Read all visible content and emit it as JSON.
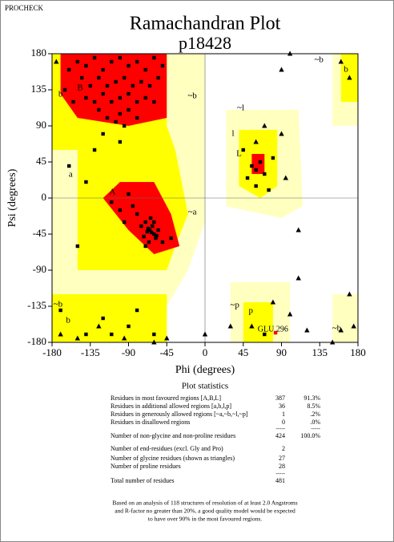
{
  "header": {
    "program": "PROCHECK"
  },
  "chart_data": {
    "type": "scatter",
    "title": "Ramachandran Plot",
    "subtitle": "p18428",
    "x_label": "Phi (degrees)",
    "y_label": "Psi (degrees)",
    "xlim": [
      -180,
      180
    ],
    "ylim": [
      -180,
      180
    ],
    "xticks": [
      -180,
      -135,
      -90,
      -45,
      0,
      45,
      90,
      135,
      180
    ],
    "yticks": [
      -180,
      -135,
      -90,
      -45,
      0,
      45,
      90,
      135,
      180
    ],
    "region_labels": [
      "B",
      "b",
      "A",
      "a",
      "~a",
      "~b",
      "~b",
      "b",
      "L",
      "l",
      "~l",
      "p",
      "~p",
      "~b",
      "b",
      "~b"
    ],
    "annotations": [
      "GLU 296"
    ],
    "series": [
      {
        "marker": "square",
        "color": "#000000",
        "x": [
          -150,
          -140,
          -130,
          -120,
          -110,
          -100,
          -90,
          -80,
          -70,
          -60,
          -145,
          -135,
          -125,
          -115,
          -105,
          -95,
          -85,
          -75,
          -65,
          -55,
          -140,
          -130,
          -120,
          -110,
          -100,
          -90,
          -80,
          -70,
          -125,
          -115,
          -100,
          -90,
          -80,
          -160,
          -165,
          -155,
          -60,
          -50,
          -105,
          -95,
          -65,
          -60,
          -62,
          -68,
          -70,
          -58,
          -64,
          -75,
          -80,
          -55,
          -66,
          -72,
          -85,
          -90,
          -60,
          -63,
          -67,
          -57,
          -100,
          -110,
          -50,
          -70,
          -95,
          -40,
          -160,
          -130,
          -140,
          -100,
          -120,
          -150,
          -170,
          -120,
          -90,
          -60,
          -140,
          -110,
          -80,
          55,
          60,
          65,
          70,
          50,
          60,
          75,
          45,
          80,
          70
        ],
        "values": [
          170,
          165,
          175,
          160,
          170,
          175,
          165,
          170,
          160,
          175,
          150,
          140,
          150,
          140,
          145,
          150,
          140,
          145,
          140,
          150,
          125,
          120,
          130,
          120,
          125,
          130,
          120,
          125,
          110,
          100,
          105,
          110,
          100,
          160,
          135,
          120,
          120,
          165,
          95,
          90,
          -40,
          -45,
          -35,
          -42,
          -30,
          -50,
          -25,
          -35,
          -20,
          -40,
          -55,
          -48,
          -10,
          5,
          -30,
          -43,
          -38,
          -47,
          -15,
          -5,
          -55,
          -60,
          -30,
          -50,
          40,
          60,
          20,
          70,
          80,
          -60,
          -140,
          -150,
          -160,
          -170,
          -170,
          -170,
          -140,
          40,
          35,
          45,
          30,
          25,
          15,
          10,
          60,
          50,
          -170
        ]
      },
      {
        "marker": "square",
        "color": "#ff0000",
        "x": [
          83
        ],
        "values": [
          -168
        ]
      },
      {
        "marker": "triangle",
        "color": "#000000",
        "x": [
          160,
          100,
          170,
          90,
          -175,
          -170,
          -150,
          -125,
          -95,
          -60,
          55,
          80,
          100,
          110,
          110,
          90,
          70,
          95,
          60,
          170,
          175,
          160,
          150,
          120,
          -45,
          0,
          30
        ],
        "values": [
          170,
          180,
          150,
          160,
          170,
          -170,
          -175,
          -160,
          -175,
          -180,
          -160,
          -130,
          -145,
          -100,
          -40,
          80,
          90,
          25,
          70,
          -120,
          -160,
          -165,
          -180,
          -165,
          -175,
          -170,
          -160
        ]
      }
    ]
  },
  "statistics": {
    "title": "Plot statistics",
    "rows": [
      {
        "label": "Residues in most favoured regions  [A,B,L]",
        "count": 387,
        "percent": "91.3%"
      },
      {
        "label": "Residues in additional allowed regions  [a,b,l,p]",
        "count": 36,
        "percent": "8.5%"
      },
      {
        "label": "Residues in generously allowed regions  [~a,~b,~l,~p]",
        "count": 1,
        "percent": ".2%"
      },
      {
        "label": "Residues in disallowed regions",
        "count": 0,
        "percent": ".0%"
      },
      {
        "label": "Number of non-glycine and non-proline residues",
        "count": 424,
        "percent": "100.0%"
      },
      {
        "label": "Number of end-residues (excl. Gly and Pro)",
        "count": 2
      },
      {
        "label": "Number of glycine residues (shown as triangles)",
        "count": 27
      },
      {
        "label": "Number of proline residues",
        "count": 28
      },
      {
        "label": "Total number of residues",
        "count": 481
      }
    ],
    "separator": "-----"
  },
  "footnote": [
    "Based on an analysis of 118 structures of resolution of at least 2.0 Angstroms",
    "and R-factor no greater than 20%, a good quality model would be expected",
    "to have over 90% in the most favoured regions."
  ]
}
